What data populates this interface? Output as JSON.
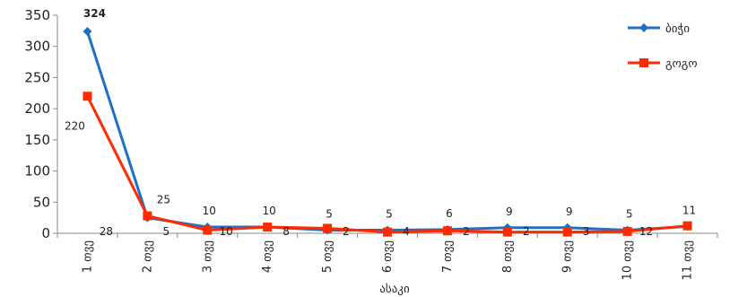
{
  "chart_data": {
    "type": "line",
    "title": "",
    "xlabel": "ასაკი",
    "ylabel": "",
    "ylim": [
      0,
      350
    ],
    "yticks": [
      0,
      50,
      100,
      150,
      200,
      250,
      300,
      350
    ],
    "grid": false,
    "legend_position": "top-right",
    "categories": [
      "1 თვე",
      "2 თვე",
      "3 თვე",
      "4 თვე",
      "5 თვე",
      "6 თვე",
      "7 თვე",
      "8 თვე",
      "9 თვე",
      "10 თვე",
      "11 თვე"
    ],
    "series": [
      {
        "name": "ბიჭი",
        "color": "#1f6fc5",
        "marker": "diamond",
        "values": [
          324,
          25,
          10,
          10,
          5,
          5,
          6,
          9,
          9,
          5,
          11
        ]
      },
      {
        "name": "გოგო",
        "color": "#ff2a00",
        "marker": "square",
        "values": [
          220,
          28,
          5,
          10,
          8,
          2,
          4,
          2,
          2,
          3,
          12
        ]
      }
    ]
  }
}
